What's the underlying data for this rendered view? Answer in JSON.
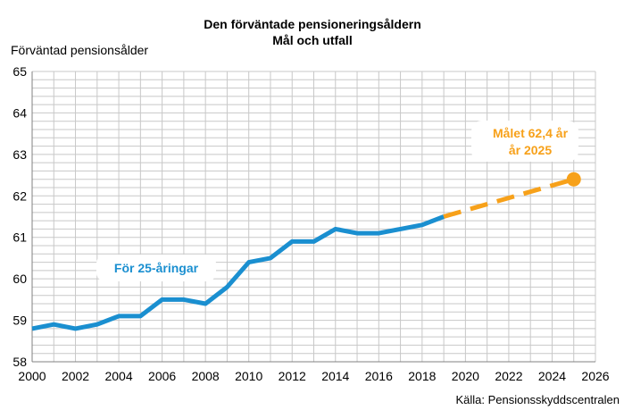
{
  "chart_data": {
    "type": "line",
    "title": "Den förväntade pensioneringsåldern",
    "subtitle": "Mål och utfall",
    "ylabel": "Förväntad pensionsålder",
    "xlabel": "",
    "source": "Källa: Pensionsskyddscentralen",
    "xlim": [
      2000,
      2026
    ],
    "ylim": [
      58,
      65
    ],
    "x_ticks": [
      "2000",
      "2002",
      "2004",
      "2006",
      "2008",
      "2010",
      "2012",
      "2014",
      "2016",
      "2018",
      "2020",
      "2022",
      "2024",
      "2026"
    ],
    "y_ticks": [
      "58",
      "59",
      "60",
      "61",
      "62",
      "63",
      "64",
      "65"
    ],
    "grid": true,
    "series": [
      {
        "name": "",
        "label": "För 25-åringar",
        "style": "solid",
        "color": "#1a8fd0",
        "x": [
          2000,
          2001,
          2002,
          2003,
          2004,
          2005,
          2006,
          2007,
          2008,
          2009,
          2010,
          2011,
          2012,
          2013,
          2014,
          2015,
          2016,
          2017,
          2018,
          2019
        ],
        "y": [
          58.8,
          58.9,
          58.8,
          58.9,
          59.1,
          59.1,
          59.5,
          59.5,
          59.4,
          59.8,
          60.4,
          60.5,
          60.9,
          60.9,
          61.2,
          61.1,
          61.1,
          61.2,
          61.3,
          61.5
        ]
      },
      {
        "name": "",
        "label": "",
        "style": "dashed",
        "color": "#f7a11a",
        "x": [
          2019,
          2025
        ],
        "y": [
          61.5,
          62.4
        ]
      }
    ],
    "target": {
      "x": 2025,
      "y": 62.4,
      "label_line1": "Målet 62,4 år",
      "label_line2": "år 2025",
      "color": "#f7a11a"
    },
    "colors": {
      "actual": "#1a8fd0",
      "target": "#f7a11a",
      "grid": "#c8c8c8",
      "axis": "#808080"
    }
  }
}
